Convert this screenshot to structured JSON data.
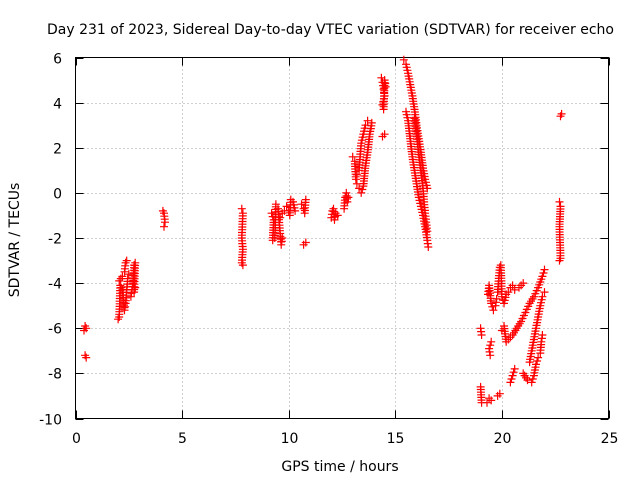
{
  "chart_data": {
    "type": "scatter",
    "title": "Day 231 of 2023, Sidereal Day-to-day VTEC variation (SDTVAR) for receiver echo",
    "xlabel": "GPS time / hours",
    "ylabel": "SDTVAR / TECUs",
    "xlim": [
      0,
      25
    ],
    "ylim": [
      -10,
      6
    ],
    "xticks": [
      0,
      5,
      10,
      15,
      20,
      25
    ],
    "yticks": [
      -10,
      -8,
      -6,
      -4,
      -2,
      0,
      2,
      4,
      6
    ],
    "xtick_labels": [
      "0",
      "5",
      "10",
      "15",
      "20",
      "25"
    ],
    "ytick_labels": [
      "-10",
      "-8",
      "-6",
      "-4",
      "-2",
      "0",
      "2",
      "4",
      "6"
    ],
    "grid": true,
    "marker": "+",
    "marker_color": "#ff0000",
    "series": [
      {
        "name": "SDTVAR",
        "segments": [
          [
            [
              0.4,
              -6.1
            ],
            [
              0.45,
              -5.9
            ],
            [
              0.5,
              -6.0
            ]
          ],
          [
            [
              0.45,
              -7.2
            ],
            [
              0.5,
              -7.3
            ]
          ],
          [
            [
              2.0,
              -5.6
            ],
            [
              2.05,
              -5.5
            ],
            [
              2.1,
              -4.1
            ],
            [
              2.05,
              -3.9
            ],
            [
              2.2,
              -3.7
            ],
            [
              2.3,
              -3.5
            ],
            [
              2.35,
              -3.1
            ],
            [
              2.4,
              -3.0
            ]
          ],
          [
            [
              2.15,
              -4.2
            ],
            [
              2.2,
              -4.3
            ],
            [
              2.3,
              -5.2
            ],
            [
              2.35,
              -4.9
            ],
            [
              2.45,
              -3.8
            ],
            [
              2.5,
              -3.6
            ]
          ],
          [
            [
              2.6,
              -4.6
            ],
            [
              2.65,
              -4.3
            ],
            [
              2.7,
              -4.0
            ],
            [
              2.75,
              -3.2
            ],
            [
              2.8,
              -3.1
            ],
            [
              2.75,
              -4.4
            ],
            [
              2.8,
              -4.2
            ]
          ],
          [
            [
              4.1,
              -0.8
            ],
            [
              4.15,
              -0.9
            ],
            [
              4.2,
              -1.3
            ],
            [
              4.15,
              -1.5
            ]
          ],
          [
            [
              7.8,
              -0.7
            ],
            [
              7.85,
              -0.9
            ],
            [
              7.8,
              -2.0
            ],
            [
              7.85,
              -2.5
            ],
            [
              7.8,
              -3.1
            ],
            [
              7.85,
              -3.2
            ]
          ],
          [
            [
              9.2,
              -0.9
            ],
            [
              9.3,
              -1.2
            ],
            [
              9.25,
              -2.1
            ],
            [
              9.35,
              -2.0
            ],
            [
              9.4,
              -0.5
            ],
            [
              9.5,
              -0.7
            ],
            [
              9.6,
              -1.8
            ],
            [
              9.65,
              -2.3
            ],
            [
              9.7,
              -2.0
            ]
          ],
          [
            [
              9.6,
              -1.1
            ],
            [
              9.7,
              -0.9
            ],
            [
              9.8,
              -0.8
            ],
            [
              9.9,
              -0.6
            ],
            [
              10.0,
              -0.8
            ],
            [
              10.05,
              -1.0
            ],
            [
              10.1,
              -0.3
            ],
            [
              10.2,
              -0.4
            ],
            [
              10.3,
              -0.8
            ]
          ],
          [
            [
              10.6,
              -0.5
            ],
            [
              10.7,
              -0.7
            ],
            [
              10.75,
              -0.9
            ],
            [
              10.8,
              -0.3
            ],
            [
              10.7,
              -2.3
            ],
            [
              10.8,
              -2.2
            ]
          ],
          [
            [
              12.0,
              -1.1
            ],
            [
              12.05,
              -0.8
            ],
            [
              12.1,
              -0.7
            ],
            [
              12.15,
              -1.2
            ],
            [
              12.2,
              -0.9
            ],
            [
              12.3,
              -1.0
            ]
          ],
          [
            [
              12.6,
              -0.7
            ],
            [
              12.65,
              -0.2
            ],
            [
              12.7,
              0.0
            ],
            [
              12.75,
              -0.4
            ],
            [
              12.8,
              -0.2
            ]
          ],
          [
            [
              13.0,
              1.6
            ],
            [
              13.1,
              1.4
            ],
            [
              13.15,
              0.6
            ],
            [
              13.2,
              0.4
            ],
            [
              13.3,
              0.2
            ],
            [
              13.4,
              0.0
            ],
            [
              13.5,
              0.3
            ],
            [
              13.6,
              1.2
            ],
            [
              13.7,
              1.8
            ],
            [
              13.8,
              2.6
            ],
            [
              13.9,
              3.1
            ]
          ],
          [
            [
              13.2,
              0.8
            ],
            [
              13.3,
              1.0
            ],
            [
              13.4,
              2.2
            ],
            [
              13.5,
              2.6
            ],
            [
              13.6,
              3.0
            ],
            [
              13.7,
              3.2
            ]
          ],
          [
            [
              14.35,
              5.1
            ],
            [
              14.4,
              4.9
            ],
            [
              14.45,
              4.6
            ],
            [
              14.5,
              4.3
            ],
            [
              14.4,
              3.9
            ],
            [
              14.45,
              3.7
            ],
            [
              14.5,
              5.0
            ],
            [
              14.55,
              4.7
            ],
            [
              14.4,
              2.5
            ],
            [
              14.5,
              2.6
            ]
          ],
          [
            [
              15.4,
              5.9
            ],
            [
              15.5,
              5.7
            ],
            [
              15.6,
              5.3
            ],
            [
              15.7,
              4.8
            ],
            [
              15.8,
              4.3
            ],
            [
              15.9,
              3.7
            ],
            [
              16.0,
              3.0
            ],
            [
              16.1,
              2.4
            ],
            [
              16.2,
              1.8
            ],
            [
              16.3,
              1.1
            ],
            [
              16.4,
              0.6
            ],
            [
              16.5,
              0.2
            ]
          ],
          [
            [
              15.5,
              3.6
            ],
            [
              15.6,
              3.2
            ],
            [
              15.7,
              2.4
            ],
            [
              15.8,
              1.6
            ],
            [
              15.9,
              1.0
            ],
            [
              16.0,
              0.4
            ],
            [
              16.1,
              -0.2
            ],
            [
              16.2,
              -0.6
            ],
            [
              16.3,
              -1.0
            ],
            [
              16.4,
              -1.5
            ],
            [
              16.5,
              -2.1
            ],
            [
              16.55,
              -2.4
            ]
          ],
          [
            [
              15.9,
              3.3
            ],
            [
              16.0,
              2.6
            ],
            [
              16.1,
              1.7
            ],
            [
              16.2,
              1.0
            ],
            [
              16.3,
              0.2
            ],
            [
              16.35,
              -0.4
            ],
            [
              16.4,
              -0.9
            ],
            [
              16.45,
              -1.3
            ],
            [
              16.5,
              -1.7
            ]
          ],
          [
            [
              19.0,
              -6.0
            ],
            [
              19.05,
              -6.3
            ],
            [
              19.0,
              -8.6
            ],
            [
              19.05,
              -9.3
            ]
          ],
          [
            [
              19.3,
              -9.3
            ],
            [
              19.4,
              -9.1
            ],
            [
              19.5,
              -9.2
            ],
            [
              19.45,
              -7.2
            ],
            [
              19.4,
              -6.9
            ],
            [
              19.5,
              -6.6
            ]
          ],
          [
            [
              19.35,
              -4.5
            ],
            [
              19.4,
              -4.1
            ],
            [
              19.5,
              -4.9
            ],
            [
              19.6,
              -5.2
            ],
            [
              19.7,
              -5.0
            ],
            [
              19.75,
              -4.7
            ]
          ],
          [
            [
              19.8,
              -4.4
            ],
            [
              19.9,
              -3.3
            ],
            [
              19.95,
              -3.2
            ],
            [
              20.0,
              -4.6
            ],
            [
              20.1,
              -4.9
            ],
            [
              20.2,
              -4.5
            ]
          ],
          [
            [
              19.8,
              -9.0
            ],
            [
              19.9,
              -8.9
            ],
            [
              20.0,
              -6.1
            ],
            [
              20.1,
              -5.9
            ],
            [
              20.2,
              -6.6
            ]
          ],
          [
            [
              20.3,
              -6.5
            ],
            [
              20.5,
              -6.3
            ],
            [
              20.7,
              -6.0
            ],
            [
              20.9,
              -5.7
            ],
            [
              21.1,
              -5.3
            ],
            [
              21.3,
              -4.9
            ],
            [
              21.5,
              -4.6
            ],
            [
              21.7,
              -4.2
            ],
            [
              21.9,
              -3.7
            ],
            [
              22.0,
              -3.4
            ]
          ],
          [
            [
              20.3,
              -4.4
            ],
            [
              20.4,
              -4.2
            ],
            [
              20.5,
              -4.1
            ],
            [
              20.6,
              -4.3
            ],
            [
              20.8,
              -4.2
            ],
            [
              21.0,
              -4.0
            ]
          ],
          [
            [
              20.4,
              -8.4
            ],
            [
              20.5,
              -8.1
            ],
            [
              20.6,
              -7.8
            ]
          ],
          [
            [
              21.0,
              -8.0
            ],
            [
              21.2,
              -8.3
            ],
            [
              21.4,
              -8.4
            ],
            [
              21.5,
              -8.1
            ],
            [
              21.6,
              -7.6
            ],
            [
              21.7,
              -7.3
            ],
            [
              21.8,
              -7.1
            ],
            [
              21.85,
              -6.6
            ],
            [
              21.9,
              -6.3
            ]
          ],
          [
            [
              21.3,
              -7.5
            ],
            [
              21.4,
              -7.0
            ],
            [
              21.5,
              -6.5
            ],
            [
              21.6,
              -6.0
            ],
            [
              21.7,
              -5.5
            ],
            [
              21.8,
              -5.0
            ],
            [
              21.9,
              -4.6
            ],
            [
              22.0,
              -4.4
            ]
          ],
          [
            [
              22.7,
              -0.4
            ],
            [
              22.75,
              -0.6
            ],
            [
              22.7,
              -1.5
            ],
            [
              22.75,
              -2.9
            ],
            [
              22.7,
              -3.0
            ],
            [
              22.75,
              3.4
            ],
            [
              22.8,
              3.5
            ]
          ]
        ]
      }
    ]
  }
}
